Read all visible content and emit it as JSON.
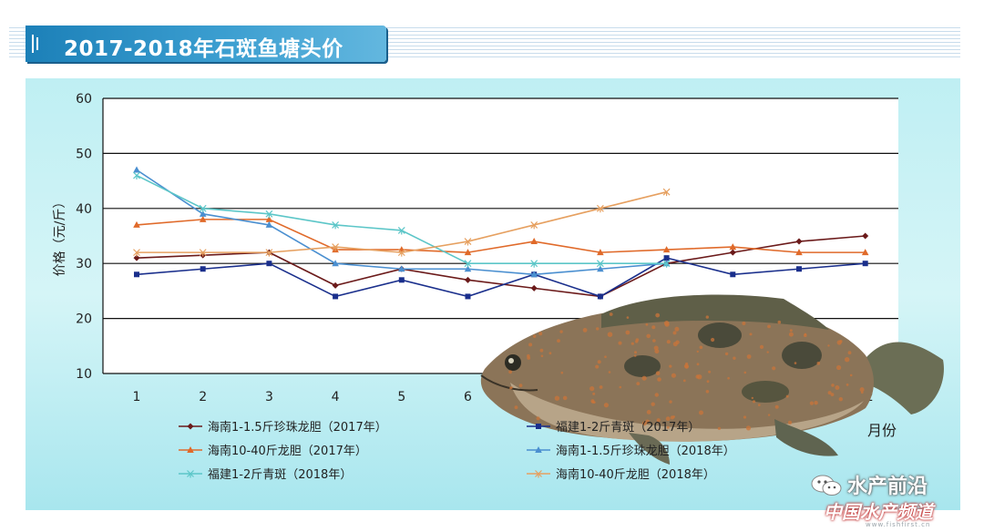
{
  "header": {
    "title": "2017-2018年石斑鱼塘头价"
  },
  "chart_data": {
    "type": "line",
    "title": "2017-2018年石斑鱼塘头价",
    "xlabel": "月份",
    "ylabel": "价格（元/斤）",
    "ylim": [
      10,
      60
    ],
    "yticks": [
      10,
      20,
      30,
      40,
      50,
      60
    ],
    "categories": [
      "1",
      "2",
      "3",
      "4",
      "5",
      "6",
      "7",
      "8",
      "9",
      "10",
      "11",
      "12"
    ],
    "grid": "horizontal",
    "legend_position": "bottom",
    "series": [
      {
        "name": "海南1-1.5斤珍珠龙胆（2017年）",
        "color": "#6b1a1a",
        "marker": "diamond",
        "values": [
          31,
          31.5,
          32,
          26,
          29,
          27,
          25.5,
          24,
          30,
          32,
          34,
          35
        ]
      },
      {
        "name": "福建1-2斤青斑（2017年）",
        "color": "#1a2f8c",
        "marker": "square",
        "values": [
          28,
          29,
          30,
          24,
          27,
          24,
          28,
          24,
          31,
          28,
          29,
          30
        ]
      },
      {
        "name": "海南10-40斤龙胆（2017年）",
        "color": "#e06a2a",
        "marker": "triangle",
        "values": [
          37,
          38,
          38,
          32.5,
          32.5,
          32,
          34,
          32,
          32.5,
          33,
          32,
          32
        ]
      },
      {
        "name": "海南1-1.5斤珍珠龙胆（2018年）",
        "color": "#4a8fd0",
        "marker": "triangle",
        "values": [
          47,
          39,
          37,
          30,
          29,
          29,
          28,
          29,
          30,
          null,
          null,
          null
        ]
      },
      {
        "name": "福建1-2斤青斑（2018年）",
        "color": "#5cc6c8",
        "marker": "cross",
        "values": [
          46,
          40,
          39,
          37,
          36,
          30,
          30,
          30,
          30,
          null,
          null,
          null
        ]
      },
      {
        "name": "海南10-40斤龙胆（2018年）",
        "color": "#e6a060",
        "marker": "cross",
        "values": [
          32,
          32,
          32,
          33,
          32,
          34,
          37,
          40,
          43,
          null,
          null,
          null
        ]
      }
    ]
  },
  "watermark": {
    "line1": "水产前沿",
    "line2": "中国水产频道",
    "line3": "www.fishfirst.cn"
  }
}
